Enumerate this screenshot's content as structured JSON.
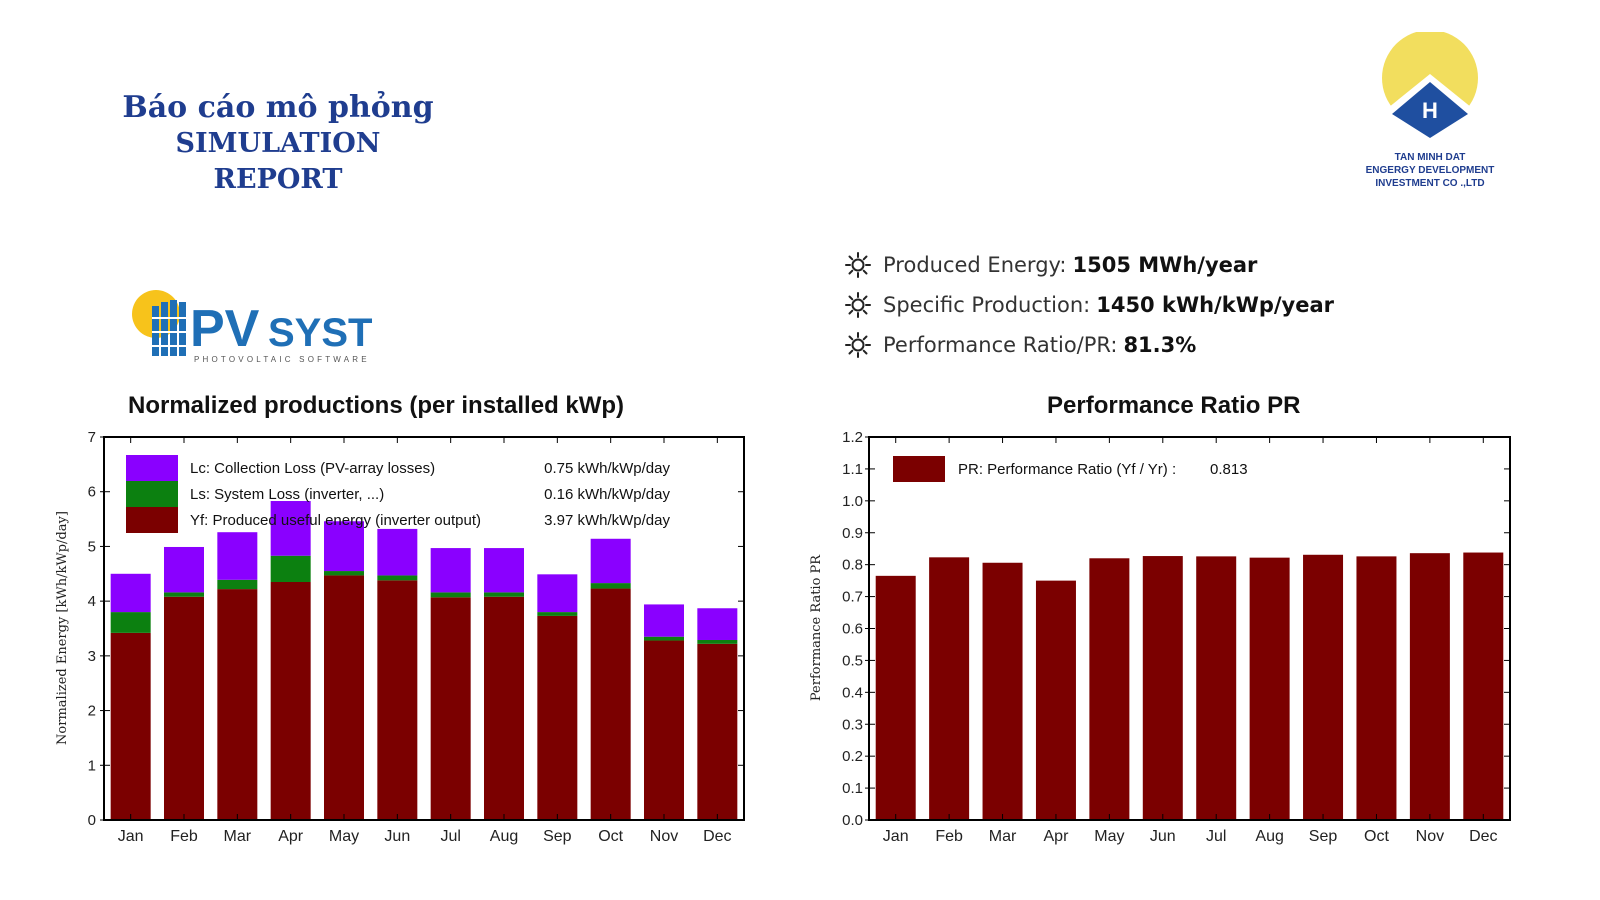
{
  "report": {
    "title_vi": "Báo cáo mô phỏng",
    "title_en": "SIMULATION REPORT"
  },
  "company": {
    "line1": "TAN MINH DAT",
    "line2": "ENGERGY DEVELOPMENT",
    "line3": "INVESTMENT CO .,LTD",
    "logo_letter": "H",
    "colors": {
      "sun": "#f2de5e",
      "house": "#1f4fa0"
    }
  },
  "pvsyst": {
    "brand": "PVsyst",
    "brand_pv": "PV",
    "brand_syst": "SYST",
    "tagline": "PHOTOVOLTAIC SOFTWARE",
    "colors": {
      "brand": "#1f6fb6",
      "sun": "#f7c31b"
    }
  },
  "kpis": [
    {
      "label": "Produced Energy:",
      "value": "1505 MWh/year",
      "icon": "sun-icon"
    },
    {
      "label": "Specific Production:",
      "value": "1450 kWh/kWp/year",
      "icon": "sun-icon"
    },
    {
      "label": "Performance Ratio/PR:",
      "value": "81.3%",
      "icon": "sun-icon"
    }
  ],
  "chart_data": [
    {
      "type": "bar",
      "stacked": true,
      "title": "Normalized productions (per installed kWp)",
      "ylabel": "Normalized Energy  [kWh/kWp/day]",
      "xlabel": "",
      "ylim": [
        0,
        7
      ],
      "yticks": [
        "0",
        "1",
        "2",
        "3",
        "4",
        "5",
        "6",
        "7"
      ],
      "categories": [
        "Jan",
        "Feb",
        "Mar",
        "Apr",
        "May",
        "Jun",
        "Jul",
        "Aug",
        "Sep",
        "Oct",
        "Nov",
        "Dec"
      ],
      "legend_position": "top-left",
      "grid": false,
      "series": [
        {
          "name": "Yf: Produced useful energy  (inverter output)",
          "legend_value": "3.97 kWh/kWp/day",
          "color": "#7b0000",
          "values": [
            3.42,
            4.08,
            4.22,
            4.35,
            4.47,
            4.38,
            4.07,
            4.08,
            3.73,
            4.23,
            3.28,
            3.22
          ]
        },
        {
          "name": "Ls: System Loss  (inverter, ...)",
          "legend_value": "0.16 kWh/kWp/day",
          "color": "#0c8010",
          "values": [
            0.38,
            0.08,
            0.17,
            0.48,
            0.08,
            0.09,
            0.09,
            0.08,
            0.07,
            0.1,
            0.07,
            0.07
          ]
        },
        {
          "name": "Lc: Collection Loss (PV-array losses)",
          "legend_value": "0.75 kWh/kWp/day",
          "color": "#8a00ff",
          "values": [
            0.7,
            0.83,
            0.87,
            1.0,
            0.91,
            0.85,
            0.81,
            0.81,
            0.69,
            0.81,
            0.59,
            0.58
          ]
        }
      ]
    },
    {
      "type": "bar",
      "title": "Performance Ratio PR",
      "ylabel": "Performance Ratio PR",
      "xlabel": "",
      "ylim": [
        0,
        1.2
      ],
      "yticks": [
        "0.0",
        "0.1",
        "0.2",
        "0.3",
        "0.4",
        "0.5",
        "0.6",
        "0.7",
        "0.8",
        "0.9",
        "1.0",
        "1.1",
        "1.2"
      ],
      "categories": [
        "Jan",
        "Feb",
        "Mar",
        "Apr",
        "May",
        "Jun",
        "Jul",
        "Aug",
        "Sep",
        "Oct",
        "Nov",
        "Dec"
      ],
      "legend_position": "top-left",
      "grid": false,
      "series": [
        {
          "name": "PR: Performance Ratio (Yf / Yr) :",
          "legend_value": "0.813",
          "color": "#7b0000",
          "values": [
            0.765,
            0.823,
            0.806,
            0.75,
            0.82,
            0.827,
            0.826,
            0.822,
            0.831,
            0.826,
            0.836,
            0.838
          ]
        }
      ]
    }
  ]
}
